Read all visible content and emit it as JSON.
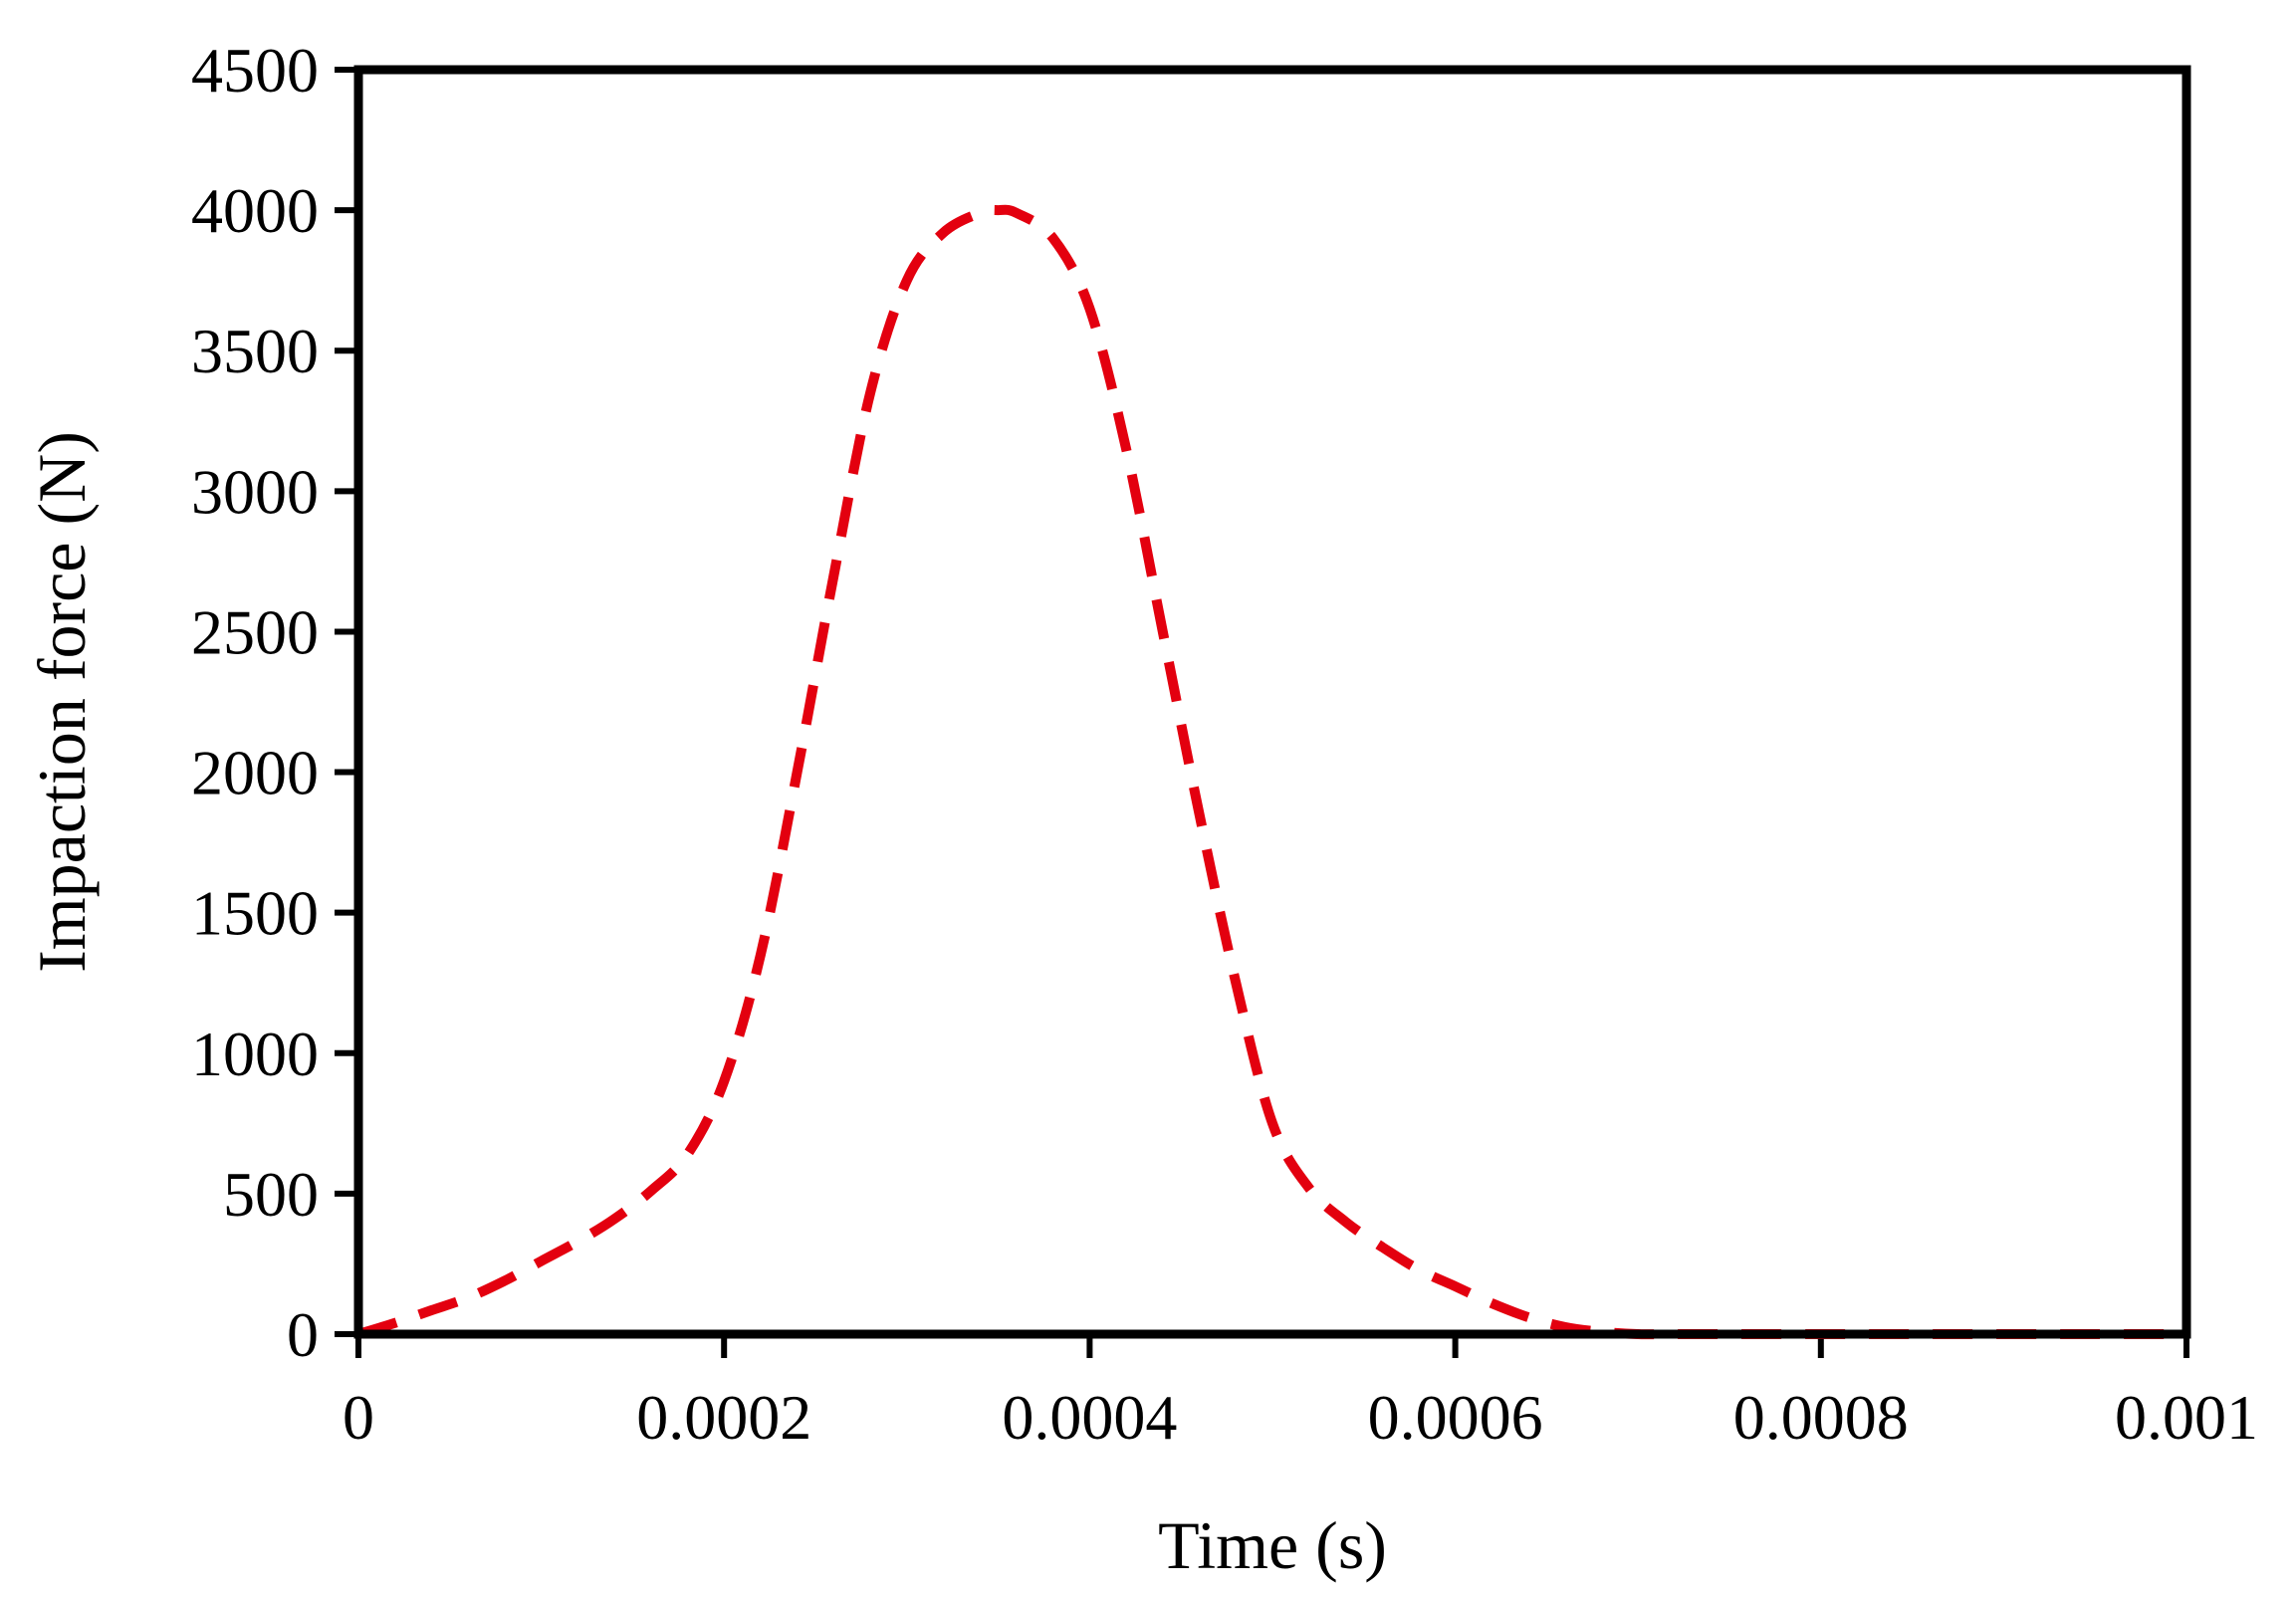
{
  "chart_data": {
    "type": "line",
    "title": "",
    "xlabel": "Time (s)",
    "ylabel": "Impaction force (N)",
    "xlim": [
      0,
      0.001
    ],
    "ylim": [
      0,
      4500
    ],
    "x_ticks": [
      0,
      0.0002,
      0.0004,
      0.0006,
      0.0008,
      0.001
    ],
    "x_tick_labels": [
      "0",
      "0.0002",
      "0.0004",
      "0.0006",
      "0.0008",
      "0.001"
    ],
    "y_ticks": [
      0,
      500,
      1000,
      1500,
      2000,
      2500,
      3000,
      3500,
      4000,
      4500
    ],
    "y_tick_labels": [
      "0",
      "500",
      "1000",
      "1500",
      "2000",
      "2500",
      "3000",
      "3500",
      "4000",
      "4500"
    ],
    "grid": false,
    "legend": "none",
    "series": [
      {
        "line_style": "dashed",
        "color": "#e3000f",
        "x": [
          0,
          2e-05,
          4e-05,
          6e-05,
          8e-05,
          0.0001,
          0.00012,
          0.00014,
          0.00016,
          0.00018,
          0.0002,
          0.00022,
          0.00024,
          0.00026,
          0.00028,
          0.0003,
          0.00032,
          0.00034,
          0.00035,
          0.00036,
          0.00038,
          0.0004,
          0.00042,
          0.00044,
          0.00046,
          0.00048,
          0.0005,
          0.00052,
          0.00054,
          0.00056,
          0.00058,
          0.0006,
          0.00062,
          0.00064,
          0.00066,
          0.00068,
          0.0007,
          0.00072,
          0.00075,
          0.0008,
          0.00085,
          0.0009,
          0.00095,
          0.001
        ],
        "y": [
          0,
          40,
          85,
          130,
          190,
          260,
          330,
          410,
          510,
          640,
          900,
          1350,
          2000,
          2700,
          3350,
          3750,
          3920,
          3990,
          4000,
          3990,
          3900,
          3650,
          3150,
          2500,
          1850,
          1250,
          750,
          520,
          400,
          310,
          230,
          170,
          110,
          60,
          25,
          8,
          0,
          0,
          0,
          0,
          0,
          0,
          0,
          0
        ]
      }
    ]
  }
}
